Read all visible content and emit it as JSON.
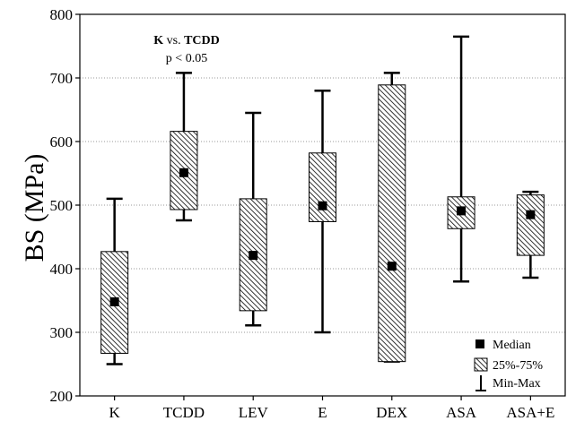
{
  "chart_data": {
    "type": "boxplot",
    "ylabel": "BS (MPa)",
    "ylim": [
      200,
      800
    ],
    "yticks": [
      200,
      300,
      400,
      500,
      600,
      700,
      800
    ],
    "grid": "horizontal-dotted",
    "categories": [
      "K",
      "TCDD",
      "LEV",
      "E",
      "DEX",
      "ASA",
      "ASA+E"
    ],
    "boxes": [
      {
        "label": "K",
        "min": 250,
        "q1": 267,
        "median": 348,
        "q3": 427,
        "max": 510
      },
      {
        "label": "TCDD",
        "min": 476,
        "q1": 493,
        "median": 551,
        "q3": 616,
        "max": 708
      },
      {
        "label": "LEV",
        "min": 311,
        "q1": 334,
        "median": 421,
        "q3": 510,
        "max": 645
      },
      {
        "label": "E",
        "min": 300,
        "q1": 474,
        "median": 499,
        "q3": 582,
        "max": 680
      },
      {
        "label": "DEX",
        "min": 254,
        "q1": 254,
        "median": 404,
        "q3": 689,
        "max": 708
      },
      {
        "label": "ASA",
        "min": 380,
        "q1": 463,
        "median": 491,
        "q3": 513,
        "max": 765
      },
      {
        "label": "ASA+E",
        "min": 386,
        "q1": 421,
        "median": 485,
        "q3": 516,
        "max": 521
      }
    ],
    "annotation": {
      "line1_a": "K",
      "line1_b": " vs. ",
      "line1_c": "TCDD",
      "line2": "p < 0.05"
    },
    "legend": {
      "position": "bottom-right",
      "entries": [
        {
          "marker": "filled-square",
          "label": "Median"
        },
        {
          "marker": "hatched-box",
          "label": "25%-75%"
        },
        {
          "marker": "whisker",
          "label": "Min-Max"
        }
      ]
    }
  }
}
